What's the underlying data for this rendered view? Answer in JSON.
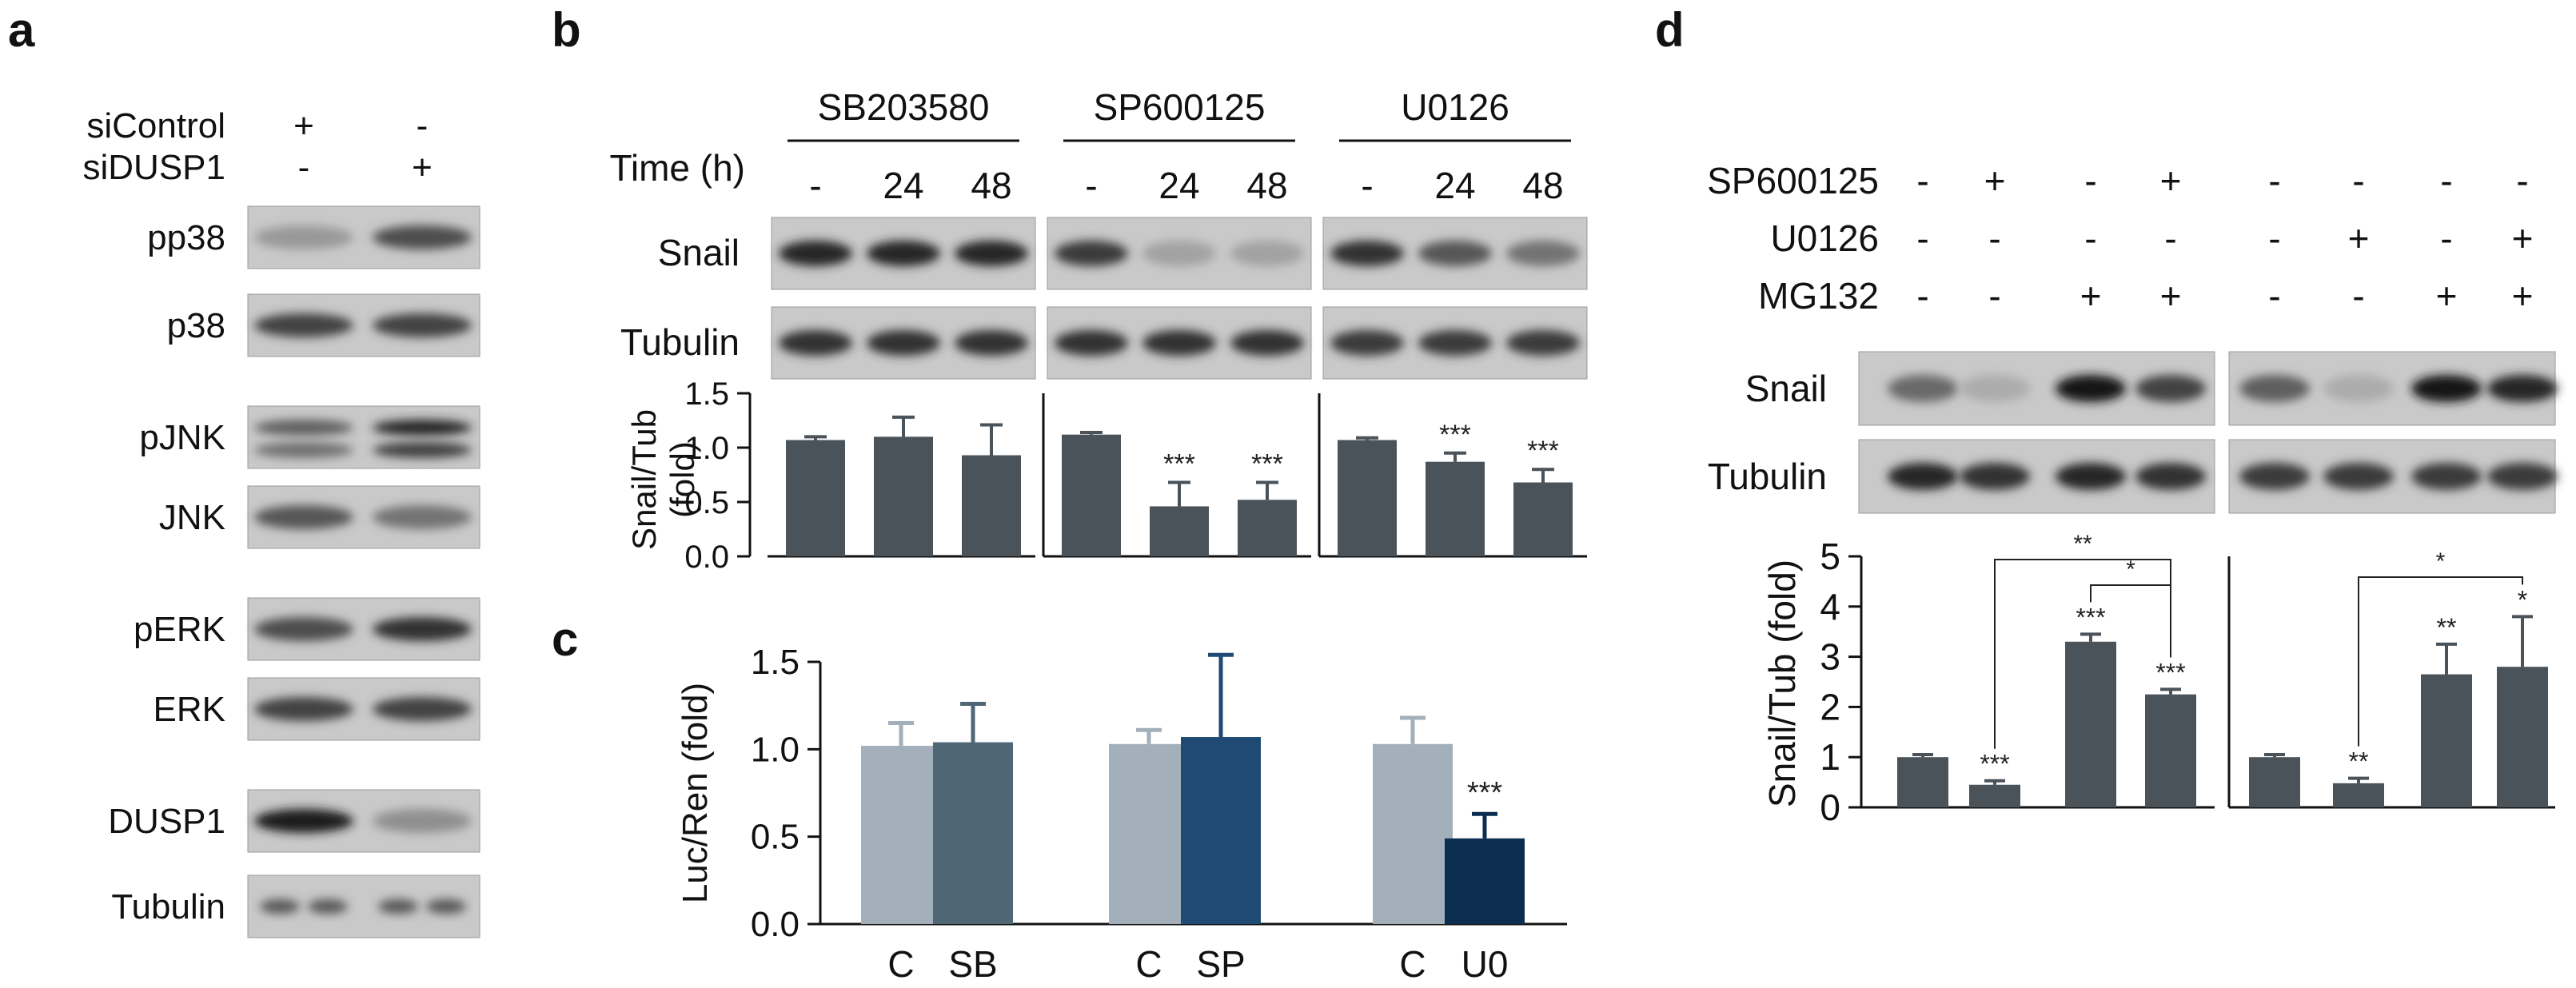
{
  "panel_labels": {
    "a": "a",
    "b": "b",
    "c": "c",
    "d": "d"
  },
  "panel_a": {
    "conditions": [
      {
        "name": "siControl",
        "values": [
          "+",
          "-"
        ]
      },
      {
        "name": "siDUSP1",
        "values": [
          "-",
          "+"
        ]
      }
    ],
    "blots": [
      {
        "label": "pp38",
        "bands": 2,
        "intensity": [
          0.25,
          0.65
        ]
      },
      {
        "label": "p38",
        "bands": 2,
        "intensity": [
          0.7,
          0.7
        ]
      },
      {
        "label": "pJNK",
        "bands": 2,
        "intensity": [
          0.55,
          0.85
        ],
        "double": true
      },
      {
        "label": "JNK",
        "bands": 2,
        "intensity": [
          0.6,
          0.45
        ]
      },
      {
        "label": "pERK",
        "bands": 2,
        "intensity": [
          0.65,
          0.8
        ]
      },
      {
        "label": "ERK",
        "bands": 2,
        "intensity": [
          0.7,
          0.7
        ]
      },
      {
        "label": "DUSP1",
        "bands": 2,
        "intensity": [
          0.9,
          0.3
        ]
      },
      {
        "label": "Tubulin",
        "bands": 2,
        "intensity": [
          0.6,
          0.6
        ],
        "split": true
      }
    ]
  },
  "panel_b": {
    "time_label": "Time (h)",
    "inhibitors": [
      "SB203580",
      "SP600125",
      "U0126"
    ],
    "time_points": [
      "-",
      "24",
      "48"
    ],
    "blots": [
      {
        "label": "Snail",
        "intensity": [
          [
            0.85,
            0.85,
            0.85
          ],
          [
            0.75,
            0.2,
            0.2
          ],
          [
            0.8,
            0.6,
            0.45
          ]
        ]
      },
      {
        "label": "Tubulin",
        "intensity": [
          [
            0.8,
            0.8,
            0.8
          ],
          [
            0.8,
            0.8,
            0.8
          ],
          [
            0.75,
            0.75,
            0.75
          ]
        ]
      }
    ],
    "significance": [
      [
        "",
        "",
        ""
      ],
      [
        "",
        "***",
        "***"
      ],
      [
        "",
        "***",
        "***"
      ]
    ]
  },
  "panel_d": {
    "conditions": [
      {
        "name": "SP600125",
        "values": [
          "-",
          "+",
          "-",
          "+",
          "-",
          "-",
          "-",
          "-"
        ]
      },
      {
        "name": "U0126",
        "values": [
          "-",
          "-",
          "-",
          "-",
          "-",
          "+",
          "-",
          "+"
        ]
      },
      {
        "name": "MG132",
        "values": [
          "-",
          "-",
          "+",
          "+",
          "-",
          "-",
          "+",
          "+"
        ]
      }
    ],
    "blots": [
      {
        "label": "Snail",
        "intensity": [
          [
            0.5,
            0.15,
            0.95,
            0.7
          ],
          [
            0.55,
            0.15,
            0.95,
            0.85
          ]
        ]
      },
      {
        "label": "Tubulin",
        "intensity": [
          [
            0.85,
            0.8,
            0.85,
            0.8
          ],
          [
            0.75,
            0.75,
            0.75,
            0.75
          ]
        ]
      }
    ],
    "significance": [
      [
        "",
        "***",
        "***",
        "***"
      ],
      [
        "",
        "**",
        "**",
        "*"
      ]
    ],
    "brackets": [
      {
        "group": 0,
        "from": 1,
        "to": 3,
        "label": "**",
        "level": 0
      },
      {
        "group": 0,
        "from": 2,
        "to": 3,
        "label": "*",
        "level": 1
      },
      {
        "group": 1,
        "from": 1,
        "to": 3,
        "label": "*",
        "level": 0
      }
    ]
  },
  "colors": {
    "bar_dark": "#4a525a",
    "bar_c_light": "#a3afba",
    "bar_sb": "#4f6675",
    "bar_sp": "#1e4a73",
    "bar_u0": "#0b2d4f",
    "blot_bg": "#c9c9c9",
    "band": "#2a2a2a"
  },
  "chart_data": [
    {
      "type": "bar",
      "panel": "b",
      "ylabel": "Snail/Tub\n(fold)",
      "ylim": [
        0,
        1.5
      ],
      "yticks": [
        "0.0",
        "0.5",
        "1.0",
        "1.5"
      ],
      "groups": [
        "SB203580",
        "SP600125",
        "U0126"
      ],
      "categories": [
        "-",
        "24",
        "48"
      ],
      "series": [
        {
          "values": [
            1.07,
            1.1,
            0.93
          ],
          "errors": [
            0.03,
            0.18,
            0.28
          ]
        },
        {
          "values": [
            1.12,
            0.46,
            0.52
          ],
          "errors": [
            0.02,
            0.22,
            0.16
          ]
        },
        {
          "values": [
            1.07,
            0.87,
            0.68
          ],
          "errors": [
            0.02,
            0.08,
            0.12
          ]
        }
      ]
    },
    {
      "type": "bar",
      "panel": "c",
      "ylabel": "Luc/Ren (fold)",
      "ylim": [
        0,
        1.5
      ],
      "yticks": [
        "0.0",
        "0.5",
        "1.0",
        "1.5"
      ],
      "categories": [
        "C",
        "SB",
        "C",
        "SP",
        "C",
        "U0"
      ],
      "values": [
        1.02,
        1.04,
        1.03,
        1.07,
        1.03,
        0.49
      ],
      "errors": [
        0.13,
        0.22,
        0.08,
        0.47,
        0.15,
        0.14
      ],
      "significance": [
        "",
        "",
        "",
        "",
        "",
        "***"
      ]
    },
    {
      "type": "bar",
      "panel": "d",
      "ylabel": "Snail/Tub (fold)",
      "ylim": [
        0,
        5
      ],
      "yticks": [
        "0",
        "1",
        "2",
        "3",
        "4",
        "5"
      ],
      "series": [
        {
          "values": [
            1.0,
            0.45,
            3.3,
            2.25
          ],
          "errors": [
            0.05,
            0.08,
            0.15,
            0.1
          ]
        },
        {
          "values": [
            1.0,
            0.48,
            2.65,
            2.8
          ],
          "errors": [
            0.05,
            0.1,
            0.6,
            1.0
          ]
        }
      ]
    }
  ]
}
